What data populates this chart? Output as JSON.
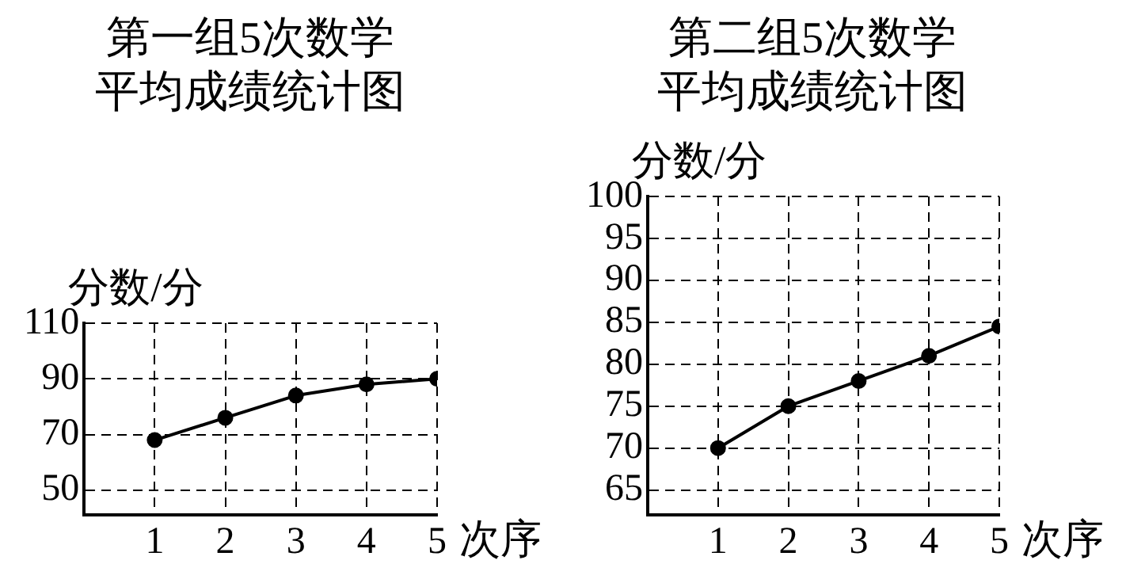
{
  "chart_data": [
    {
      "type": "line",
      "title": "第一组5次数学平均成绩统计图",
      "xlabel": "次序",
      "ylabel": "分数/分",
      "x": [
        1,
        2,
        3,
        4,
        5
      ],
      "values": [
        68,
        76,
        84,
        88,
        90
      ],
      "color": "#000000",
      "xlim": [
        0,
        5
      ],
      "xticks": [
        1,
        2,
        3,
        4,
        5
      ],
      "ylim": [
        41,
        110
      ],
      "yticks": [
        50,
        70,
        90,
        110
      ],
      "grid": true,
      "marker": "circle",
      "line_style": "solid",
      "legend": false
    },
    {
      "type": "line",
      "title": "第二组5次数学平均成绩统计图",
      "xlabel": "次序",
      "ylabel": "分数/分",
      "x": [
        1,
        2,
        3,
        4,
        5
      ],
      "values": [
        70,
        75,
        78,
        81,
        84.5
      ],
      "color": "#000000",
      "xlim": [
        0,
        5
      ],
      "xticks": [
        1,
        2,
        3,
        4,
        5
      ],
      "ylim": [
        62,
        100
      ],
      "yticks": [
        65,
        70,
        75,
        80,
        85,
        90,
        95,
        100
      ],
      "grid": true,
      "marker": "circle",
      "line_style": "solid",
      "legend": false
    }
  ]
}
